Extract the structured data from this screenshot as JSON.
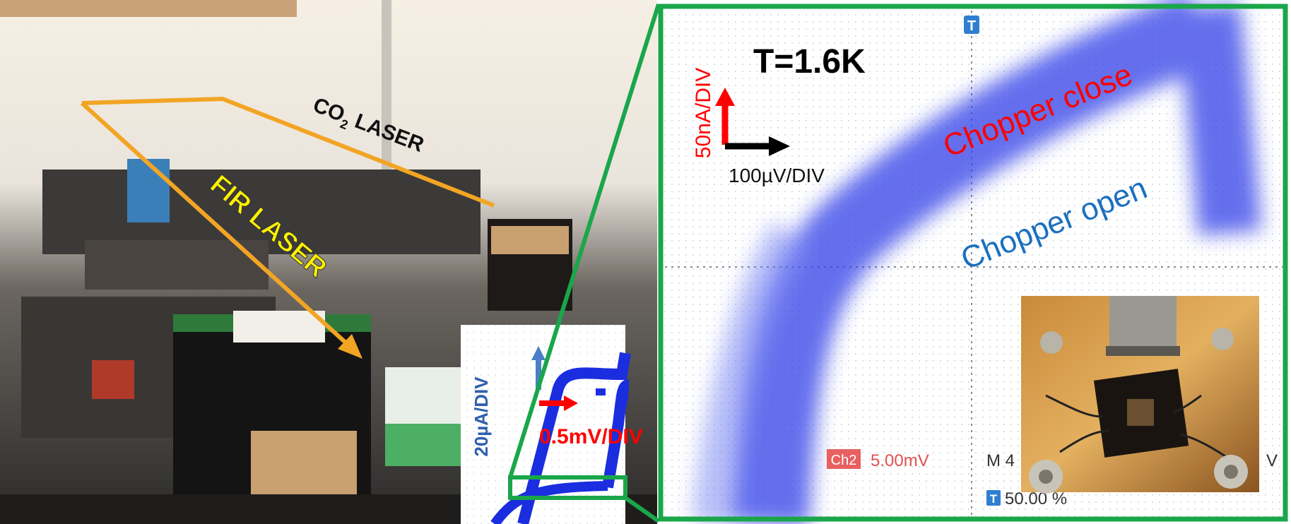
{
  "photo": {
    "co2_label": "CO",
    "co2_subscript": "2",
    "co2_suffix": " LASER",
    "fir_label": "FIR LASER"
  },
  "scope": {
    "trigger_top": "T",
    "temperature": "T=1.6K",
    "y_scale": "50nA/DIV",
    "x_scale": "100µV/DIV",
    "close_label": "Chopper close",
    "open_label": "Chopper open",
    "channel": "Ch2",
    "channel_scale": "5.00mV",
    "timebase": "M 4",
    "trailing": "V",
    "trigger_marker": "T",
    "trigger_level": "50.00 %"
  },
  "inset": {
    "y_scale": "20µA/DIV",
    "x_scale": "0.5mV/DIV"
  }
}
